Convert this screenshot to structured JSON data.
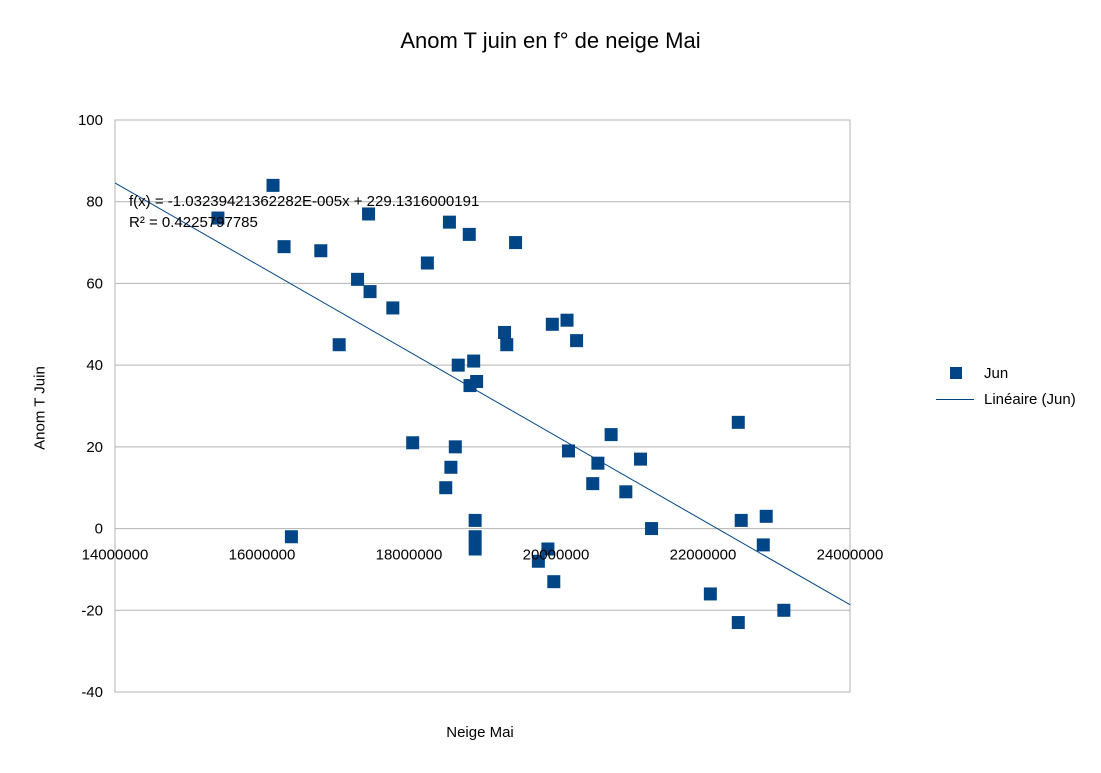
{
  "chart_data": {
    "type": "scatter",
    "title": "Anom T juin en f° de neige Mai",
    "xlabel": "Neige Mai",
    "ylabel": "Anom T Juin",
    "xlim": [
      14000000,
      24000000
    ],
    "ylim": [
      -40,
      100
    ],
    "x_ticks": [
      "14000000",
      "16000000",
      "18000000",
      "20000000",
      "22000000",
      "24000000"
    ],
    "y_ticks": [
      "-40",
      "-20",
      "0",
      "20",
      "40",
      "60",
      "80",
      "100"
    ],
    "grid": "horizontal",
    "legend_position": "right",
    "series": [
      {
        "name": "Jun",
        "color": "#004586",
        "marker": "square",
        "points": [
          [
            15400000,
            76
          ],
          [
            16150000,
            84
          ],
          [
            16300000,
            69
          ],
          [
            16400000,
            -2
          ],
          [
            16800000,
            68
          ],
          [
            17050000,
            45
          ],
          [
            17300000,
            61
          ],
          [
            17450000,
            77
          ],
          [
            17470000,
            58
          ],
          [
            17780000,
            54
          ],
          [
            18050000,
            21
          ],
          [
            18250000,
            65
          ],
          [
            18500000,
            10
          ],
          [
            18550000,
            75
          ],
          [
            18570000,
            15
          ],
          [
            18630000,
            20
          ],
          [
            18670000,
            40
          ],
          [
            18820000,
            72
          ],
          [
            18830000,
            35
          ],
          [
            18880000,
            41
          ],
          [
            18900000,
            2
          ],
          [
            18900000,
            -2
          ],
          [
            18900000,
            -5
          ],
          [
            18920000,
            36
          ],
          [
            19300000,
            48
          ],
          [
            19330000,
            45
          ],
          [
            19450000,
            70
          ],
          [
            19760000,
            -8
          ],
          [
            19890000,
            -5
          ],
          [
            19950000,
            50
          ],
          [
            19970000,
            -13
          ],
          [
            20150000,
            51
          ],
          [
            20170000,
            19
          ],
          [
            20280000,
            46
          ],
          [
            20500000,
            11
          ],
          [
            20570000,
            16
          ],
          [
            20750000,
            23
          ],
          [
            20950000,
            9
          ],
          [
            21150000,
            17
          ],
          [
            21300000,
            0
          ],
          [
            22100000,
            -16
          ],
          [
            22480000,
            26
          ],
          [
            22480000,
            -23
          ],
          [
            22520000,
            2
          ],
          [
            22820000,
            -4
          ],
          [
            22860000,
            3
          ],
          [
            23100000,
            -20
          ]
        ]
      }
    ],
    "trendline": {
      "name": "Linéaire (Jun)",
      "color": "#004586",
      "slope": -1.03239421362282e-05,
      "intercept": 229.1316000191,
      "equation": "f(x) = -1.03239421362282E-005x + 229.1316000191",
      "r2": "R² = 0.4225797785"
    }
  },
  "legend": {
    "series_label": "Jun",
    "trend_label": "Linéaire (Jun)"
  }
}
